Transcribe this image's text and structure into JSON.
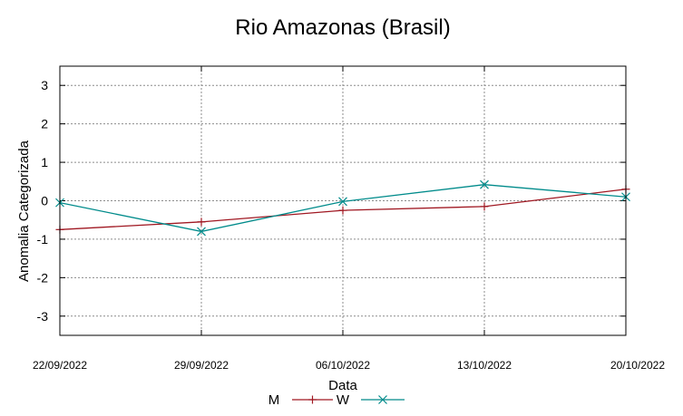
{
  "chart_data": {
    "type": "line",
    "title": "Rio Amazonas (Brasil)",
    "xlabel": "Data",
    "ylabel": "Anomalia Categorizada",
    "categories": [
      "22/09/2022",
      "29/09/2022",
      "06/10/2022",
      "13/10/2022",
      "20/10/2022"
    ],
    "yticks": [
      "3",
      "2",
      "1",
      "0",
      "-1",
      "-2",
      "-3"
    ],
    "ylim": [
      -3.5,
      3.5
    ],
    "grid": true,
    "legend_position": "bottom",
    "series": [
      {
        "name": "M",
        "color": "#a01822",
        "marker": "plus",
        "values": [
          -0.75,
          -0.55,
          -0.25,
          -0.15,
          0.3
        ]
      },
      {
        "name": "W",
        "color": "#008b8b",
        "marker": "cross",
        "values": [
          -0.05,
          -0.8,
          -0.02,
          0.42,
          0.1
        ]
      }
    ]
  }
}
